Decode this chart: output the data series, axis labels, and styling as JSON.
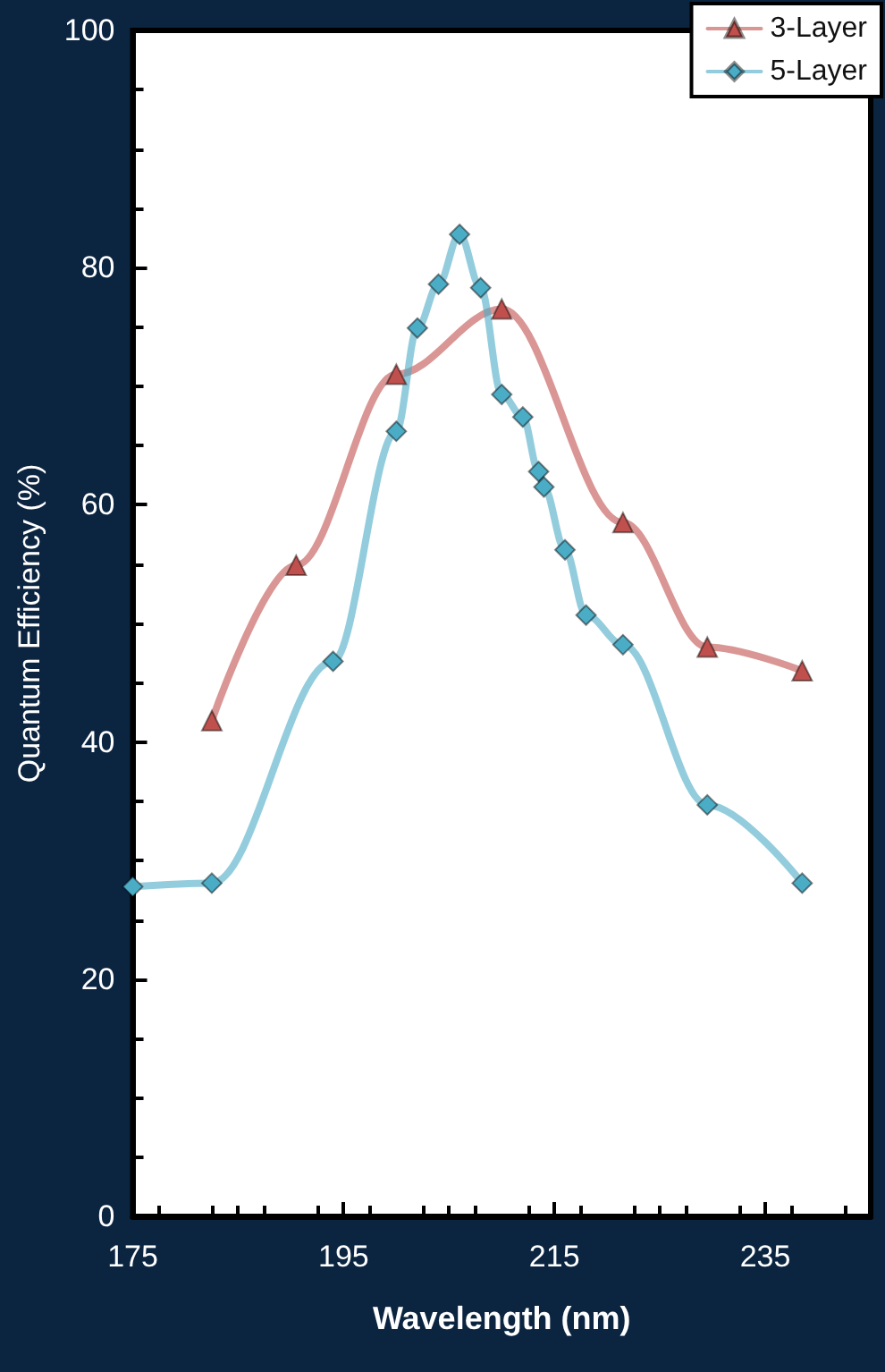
{
  "chart_data": {
    "type": "line",
    "xlabel": "Wavelength (nm)",
    "ylabel": "Quantum Efficiency (%)",
    "xlim": [
      175,
      245
    ],
    "xticks": [
      175,
      195,
      215,
      235
    ],
    "ylim": [
      0,
      100
    ],
    "yticks": [
      0,
      20,
      40,
      60,
      80,
      100
    ],
    "grid": false,
    "legend": "top right",
    "line_style": "solid",
    "series": [
      {
        "name": "3-Layer",
        "color": "#c0504d",
        "marker": "triangle",
        "x": [
          182.5,
          190.5,
          200,
          210,
          221.5,
          229.5,
          238.5
        ],
        "values": [
          41.8,
          54.9,
          71,
          76.5,
          58.5,
          48,
          46
        ]
      },
      {
        "name": "5-Layer",
        "color": "#4bacc6",
        "marker": "diamond",
        "x": [
          175,
          182.5,
          194,
          200,
          202,
          204,
          206,
          208,
          210,
          212,
          213.5,
          214,
          216,
          218,
          221.5,
          229.5,
          238.5
        ],
        "values": [
          27.8,
          28.1,
          46.8,
          66.2,
          74.9,
          78.6,
          82.8,
          78.3,
          69.3,
          67.4,
          62.8,
          61.5,
          56.2,
          50.7,
          48.2,
          34.7,
          28.1
        ]
      }
    ]
  }
}
